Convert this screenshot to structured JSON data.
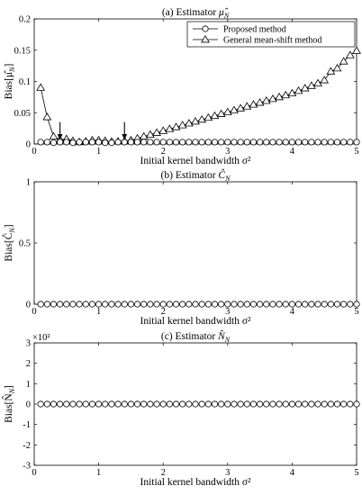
{
  "chart_data": [
    {
      "type": "line",
      "title": "(a) Estimator μ̂_N",
      "title_text": "(a) Estimator ",
      "title_symbol": "μ̂",
      "title_sub": "N",
      "xlabel": "Initial kernel bandwidth σ²",
      "ylabel": "Bias[μ̂_N]",
      "ylabel_main": "Bias[μ̂",
      "ylabel_sub": "N",
      "ylabel_close": "]",
      "xlim": [
        0,
        5
      ],
      "ylim": [
        0,
        0.2
      ],
      "x_ticks": [
        0,
        1,
        2,
        3,
        4,
        5
      ],
      "x_tick_labels": [
        "0",
        "1",
        "2",
        "3",
        "4",
        "5"
      ],
      "y_ticks": [
        0,
        0.05,
        0.1,
        0.15,
        0.2
      ],
      "y_tick_labels": [
        "0",
        "0.05",
        "0.1",
        "0.15",
        "0.2"
      ],
      "legend_position": "top-right",
      "legend": [
        "Proposed method",
        "General mean-shift method"
      ],
      "series": [
        {
          "name": "Proposed method",
          "marker": "circle",
          "x": [
            0.1,
            0.2,
            0.3,
            0.4,
            0.5,
            0.6,
            0.7,
            0.8,
            0.9,
            1.0,
            1.1,
            1.2,
            1.3,
            1.4,
            1.5,
            1.6,
            1.7,
            1.8,
            1.9,
            2.0,
            2.1,
            2.2,
            2.3,
            2.4,
            2.5,
            2.6,
            2.7,
            2.8,
            2.9,
            3.0,
            3.1,
            3.2,
            3.3,
            3.4,
            3.5,
            3.6,
            3.7,
            3.8,
            3.9,
            4.0,
            4.1,
            4.2,
            4.3,
            4.4,
            4.5,
            4.6,
            4.7,
            4.8,
            4.9,
            5.0
          ],
          "y": [
            0.003,
            0.003,
            0.002,
            0.003,
            0.003,
            0.002,
            0.003,
            0.003,
            0.003,
            0.003,
            0.002,
            0.002,
            0.003,
            0.003,
            0.003,
            0.003,
            0.003,
            0.003,
            0.003,
            0.003,
            0.003,
            0.003,
            0.003,
            0.003,
            0.003,
            0.003,
            0.003,
            0.003,
            0.003,
            0.003,
            0.003,
            0.003,
            0.003,
            0.003,
            0.003,
            0.003,
            0.003,
            0.003,
            0.003,
            0.003,
            0.003,
            0.003,
            0.003,
            0.003,
            0.003,
            0.003,
            0.003,
            0.003,
            0.003,
            0.003
          ]
        },
        {
          "name": "General mean-shift method",
          "marker": "triangle",
          "x": [
            0.1,
            0.2,
            0.3,
            0.4,
            0.5,
            0.6,
            0.7,
            0.8,
            0.9,
            1.0,
            1.1,
            1.2,
            1.3,
            1.4,
            1.5,
            1.6,
            1.7,
            1.8,
            1.9,
            2.0,
            2.1,
            2.2,
            2.3,
            2.4,
            2.5,
            2.6,
            2.7,
            2.8,
            2.9,
            3.0,
            3.1,
            3.2,
            3.3,
            3.4,
            3.5,
            3.6,
            3.7,
            3.8,
            3.9,
            4.0,
            4.1,
            4.2,
            4.3,
            4.4,
            4.5,
            4.6,
            4.7,
            4.8,
            4.9,
            5.0
          ],
          "y": [
            0.09,
            0.043,
            0.012,
            0.007,
            0.008,
            0.005,
            0.003,
            0.004,
            0.006,
            0.006,
            0.005,
            0.004,
            0.004,
            0.005,
            0.006,
            0.009,
            0.012,
            0.015,
            0.018,
            0.021,
            0.024,
            0.027,
            0.03,
            0.033,
            0.036,
            0.039,
            0.042,
            0.045,
            0.048,
            0.051,
            0.054,
            0.057,
            0.06,
            0.063,
            0.066,
            0.069,
            0.072,
            0.075,
            0.078,
            0.081,
            0.085,
            0.089,
            0.093,
            0.097,
            0.102,
            0.116,
            0.121,
            0.132,
            0.142,
            0.149
          ]
        }
      ],
      "annotations": [
        {
          "type": "arrow",
          "x": 0.4,
          "y_from": 0.035,
          "y_to": 0.007
        },
        {
          "type": "arrow",
          "x": 1.4,
          "y_from": 0.035,
          "y_to": 0.007
        }
      ]
    },
    {
      "type": "line",
      "title": "(b) Estimator Ĉ_N",
      "title_text": "(b) Estimator ",
      "title_symbol": "Ĉ",
      "title_sub": "N",
      "xlabel": "Initial kernel bandwidth σ²",
      "ylabel": "Bias[Ĉ_N]",
      "ylabel_main": "Bias[Ĉ",
      "ylabel_sub": "N",
      "ylabel_close": "]",
      "xlim": [
        0,
        5
      ],
      "ylim": [
        0,
        1
      ],
      "x_ticks": [
        0,
        1,
        2,
        3,
        4,
        5
      ],
      "x_tick_labels": [
        "0",
        "1",
        "2",
        "3",
        "4",
        "5"
      ],
      "y_ticks": [
        0,
        0.5,
        1
      ],
      "y_tick_labels": [
        "0",
        "0.5",
        "1"
      ],
      "series": [
        {
          "name": "Proposed method",
          "marker": "circle",
          "x": [
            0.1,
            0.2,
            0.3,
            0.4,
            0.5,
            0.6,
            0.7,
            0.8,
            0.9,
            1.0,
            1.1,
            1.2,
            1.3,
            1.4,
            1.5,
            1.6,
            1.7,
            1.8,
            1.9,
            2.0,
            2.1,
            2.2,
            2.3,
            2.4,
            2.5,
            2.6,
            2.7,
            2.8,
            2.9,
            3.0,
            3.1,
            3.2,
            3.3,
            3.4,
            3.5,
            3.6,
            3.7,
            3.8,
            3.9,
            4.0,
            4.1,
            4.2,
            4.3,
            4.4,
            4.5,
            4.6,
            4.7,
            4.8,
            4.9,
            5.0
          ],
          "y": [
            0,
            0,
            0,
            0,
            0,
            0,
            0,
            0,
            0,
            0,
            0,
            0,
            0,
            0,
            0,
            0,
            0,
            0,
            0,
            0,
            0,
            0,
            0,
            0,
            0,
            0,
            0,
            0,
            0,
            0,
            0,
            0,
            0,
            0,
            0,
            0,
            0,
            0,
            0,
            0,
            0,
            0,
            0,
            0,
            0,
            0,
            0,
            0,
            0,
            0
          ]
        }
      ]
    },
    {
      "type": "line",
      "title": "(c) Estimator N̂_N",
      "title_text": "(c) Estimator ",
      "title_symbol": "N̂",
      "title_sub": "N",
      "xlabel": "Initial kernel bandwidth σ²",
      "ylabel": "Bias[N̂_N]",
      "ylabel_main": "Bias[N̂",
      "ylabel_sub": "N",
      "ylabel_close": "]",
      "xlim": [
        0,
        5
      ],
      "ylim": [
        -3,
        3
      ],
      "y_scale_label": "×10²",
      "x_ticks": [
        0,
        1,
        2,
        3,
        4,
        5
      ],
      "x_tick_labels": [
        "0",
        "1",
        "2",
        "3",
        "4",
        "5"
      ],
      "y_ticks": [
        -3,
        -2,
        -1,
        0,
        1,
        2,
        3
      ],
      "y_tick_labels": [
        "-3",
        "-2",
        "-1",
        "0",
        "1",
        "2",
        "3"
      ],
      "series": [
        {
          "name": "Proposed method",
          "marker": "circle",
          "x": [
            0.1,
            0.2,
            0.3,
            0.4,
            0.5,
            0.6,
            0.7,
            0.8,
            0.9,
            1.0,
            1.1,
            1.2,
            1.3,
            1.4,
            1.5,
            1.6,
            1.7,
            1.8,
            1.9,
            2.0,
            2.1,
            2.2,
            2.3,
            2.4,
            2.5,
            2.6,
            2.7,
            2.8,
            2.9,
            3.0,
            3.1,
            3.2,
            3.3,
            3.4,
            3.5,
            3.6,
            3.7,
            3.8,
            3.9,
            4.0,
            4.1,
            4.2,
            4.3,
            4.4,
            4.5,
            4.6,
            4.7,
            4.8,
            4.9,
            5.0
          ],
          "y": [
            0,
            0,
            0,
            0,
            0,
            0,
            0,
            0,
            0,
            0,
            0,
            0,
            0,
            0,
            0,
            0,
            0,
            0,
            0,
            0,
            0,
            0,
            0,
            0,
            0,
            0,
            0,
            0,
            0,
            0,
            0,
            0,
            0,
            0,
            0,
            0,
            0,
            0,
            0,
            0,
            0,
            0,
            0,
            0,
            0,
            0,
            0,
            0,
            0,
            0
          ]
        }
      ]
    }
  ]
}
